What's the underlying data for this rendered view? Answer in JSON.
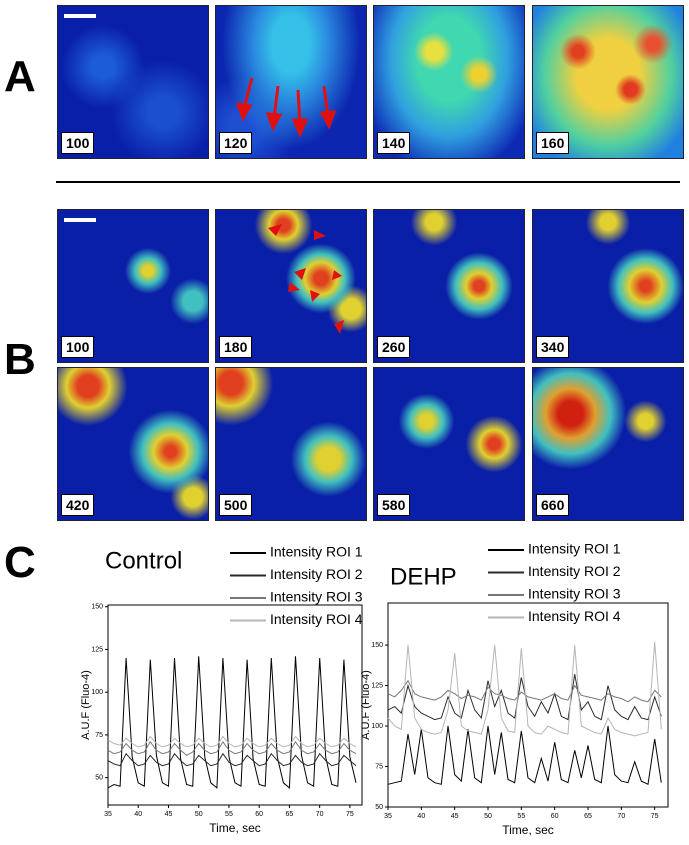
{
  "panel_a": {
    "label": "A",
    "frames": [
      "100",
      "120",
      "140",
      "160"
    ]
  },
  "panel_b": {
    "label": "B",
    "frames": [
      "100",
      "180",
      "260",
      "340",
      "420",
      "500",
      "580",
      "660"
    ]
  },
  "panel_c": {
    "label": "C"
  },
  "chart_data": [
    {
      "type": "line",
      "title": "Control",
      "x_label": "Time, sec",
      "y_label": "A.U.F (Fluo-4)",
      "x": [
        35,
        36,
        37,
        38,
        39,
        40,
        41,
        42,
        43,
        44,
        45,
        46,
        47,
        48,
        49,
        50,
        51,
        52,
        53,
        54,
        55,
        56,
        57,
        58,
        59,
        60,
        61,
        62,
        63,
        64,
        65,
        66,
        67,
        68,
        69,
        70,
        71,
        72,
        73,
        74,
        75,
        76
      ],
      "xlim": [
        35,
        77
      ],
      "xticks": [
        35,
        40,
        45,
        50,
        55,
        60,
        65,
        70,
        75
      ],
      "ylim": [
        34,
        151
      ],
      "yticks": [
        50,
        75,
        100,
        125,
        150
      ],
      "series": [
        {
          "name": "Intensity ROI 1",
          "color": "#000000",
          "values": [
            44,
            46,
            45,
            120,
            62,
            47,
            45,
            119,
            63,
            47,
            45,
            120,
            61,
            46,
            45,
            121,
            62,
            47,
            44,
            120,
            62,
            47,
            45,
            119,
            61,
            46,
            45,
            120,
            62,
            47,
            44,
            121,
            63,
            47,
            45,
            120,
            62,
            46,
            45,
            119,
            62,
            47
          ]
        },
        {
          "name": "Intensity ROI 2",
          "color": "#2a2a2a",
          "values": [
            60,
            58,
            57,
            64,
            60,
            57,
            58,
            63,
            59,
            57,
            58,
            64,
            60,
            57,
            58,
            63,
            60,
            57,
            58,
            64,
            59,
            57,
            58,
            63,
            60,
            57,
            58,
            64,
            60,
            57,
            58,
            63,
            59,
            57,
            58,
            64,
            60,
            57,
            58,
            63,
            60,
            57
          ]
        },
        {
          "name": "Intensity ROI 3",
          "color": "#777777",
          "values": [
            66,
            64,
            65,
            70,
            66,
            64,
            65,
            71,
            66,
            64,
            65,
            70,
            66,
            63,
            65,
            70,
            66,
            64,
            65,
            71,
            66,
            64,
            65,
            70,
            66,
            64,
            65,
            70,
            66,
            64,
            65,
            71,
            66,
            64,
            65,
            70,
            66,
            64,
            65,
            70,
            66,
            64
          ]
        },
        {
          "name": "Intensity ROI 4",
          "color": "#b5b5b5",
          "values": [
            72,
            70,
            69,
            73,
            70,
            68,
            69,
            74,
            70,
            68,
            69,
            73,
            70,
            68,
            69,
            73,
            70,
            68,
            69,
            74,
            70,
            68,
            69,
            73,
            70,
            68,
            69,
            73,
            70,
            68,
            69,
            74,
            70,
            68,
            69,
            73,
            70,
            68,
            69,
            73,
            70,
            68
          ]
        }
      ]
    },
    {
      "type": "line",
      "title": "DEHP",
      "x_label": "Time, sec",
      "y_label": "A.U.F (Fluo-4)",
      "x": [
        35,
        36,
        37,
        38,
        39,
        40,
        41,
        42,
        43,
        44,
        45,
        46,
        47,
        48,
        49,
        50,
        51,
        52,
        53,
        54,
        55,
        56,
        57,
        58,
        59,
        60,
        61,
        62,
        63,
        64,
        65,
        66,
        67,
        68,
        69,
        70,
        71,
        72,
        73,
        74,
        75,
        76
      ],
      "xlim": [
        35,
        77
      ],
      "xticks": [
        35,
        40,
        45,
        50,
        55,
        60,
        65,
        70,
        75
      ],
      "ylim": [
        50,
        176
      ],
      "yticks": [
        50,
        75,
        100,
        125,
        150
      ],
      "series": [
        {
          "name": "Intensity ROI 1",
          "color": "#000000",
          "values": [
            64,
            65,
            66,
            95,
            70,
            98,
            68,
            65,
            64,
            100,
            70,
            66,
            98,
            68,
            65,
            100,
            70,
            96,
            67,
            65,
            97,
            68,
            65,
            80,
            66,
            90,
            67,
            65,
            85,
            68,
            88,
            67,
            65,
            100,
            70,
            66,
            65,
            78,
            66,
            64,
            92,
            65
          ]
        },
        {
          "name": "Intensity ROI 2",
          "color": "#2a2a2a",
          "values": [
            110,
            112,
            108,
            125,
            112,
            108,
            106,
            104,
            105,
            118,
            108,
            105,
            122,
            110,
            105,
            128,
            112,
            122,
            108,
            105,
            130,
            112,
            106,
            115,
            108,
            120,
            106,
            104,
            132,
            110,
            115,
            106,
            104,
            125,
            110,
            106,
            104,
            112,
            105,
            104,
            118,
            106
          ]
        },
        {
          "name": "Intensity ROI 3",
          "color": "#777777",
          "values": [
            120,
            118,
            122,
            128,
            120,
            118,
            117,
            116,
            118,
            122,
            120,
            117,
            119,
            118,
            116,
            124,
            120,
            119,
            117,
            116,
            121,
            118,
            117,
            116,
            118,
            120,
            117,
            116,
            125,
            119,
            118,
            117,
            116,
            120,
            118,
            117,
            115,
            118,
            116,
            115,
            122,
            118
          ]
        },
        {
          "name": "Intensity ROI 4",
          "color": "#b5b5b5",
          "values": [
            105,
            100,
            98,
            150,
            105,
            98,
            96,
            95,
            96,
            110,
            145,
            100,
            97,
            96,
            95,
            110,
            150,
            105,
            97,
            96,
            148,
            100,
            96,
            95,
            100,
            98,
            96,
            95,
            150,
            100,
            98,
            96,
            95,
            105,
            98,
            96,
            95,
            94,
            95,
            96,
            152,
            98
          ]
        }
      ]
    }
  ]
}
